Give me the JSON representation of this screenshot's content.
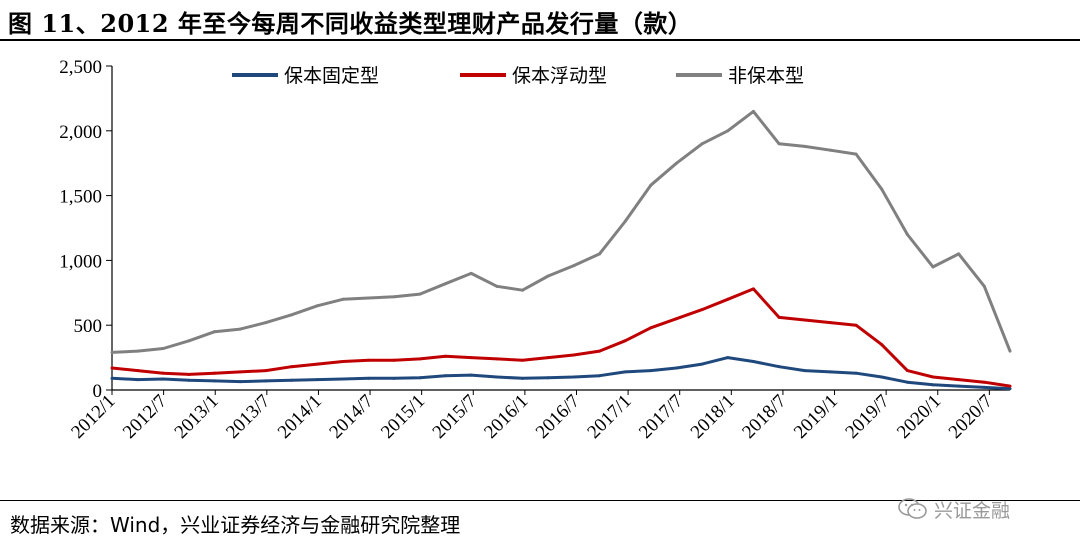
{
  "title": "图 11、2012 年至今每周不同收益类型理财产品发行量（款）",
  "source": "数据来源：Wind，兴业证券经济与金融研究院整理",
  "watermark": "兴证金融",
  "chart_data": {
    "type": "line",
    "ylim": [
      0,
      2500
    ],
    "yticks": [
      0,
      500,
      1000,
      1500,
      2000,
      2500
    ],
    "ytick_labels": [
      "0",
      "500",
      "1,000",
      "1,500",
      "2,000",
      "2,500"
    ],
    "xtick_labels": [
      "2012/1",
      "2012/7",
      "2013/1",
      "2013/7",
      "2014/1",
      "2014/7",
      "2015/1",
      "2015/7",
      "2016/1",
      "2016/7",
      "2017/1",
      "2017/7",
      "2018/1",
      "2018/7",
      "2019/1",
      "2019/7",
      "2020/1",
      "2020/7"
    ],
    "x": [
      "2012/1",
      "2012/4",
      "2012/7",
      "2012/10",
      "2013/1",
      "2013/4",
      "2013/7",
      "2013/10",
      "2014/1",
      "2014/4",
      "2014/7",
      "2014/10",
      "2015/1",
      "2015/4",
      "2015/7",
      "2015/10",
      "2016/1",
      "2016/4",
      "2016/7",
      "2016/10",
      "2017/1",
      "2017/4",
      "2017/7",
      "2017/10",
      "2018/1",
      "2018/4",
      "2018/7",
      "2018/10",
      "2019/1",
      "2019/4",
      "2019/7",
      "2019/10",
      "2020/1",
      "2020/4",
      "2020/7",
      "2020/10"
    ],
    "legend_position": "top",
    "grid": false,
    "series": [
      {
        "name": "保本固定型",
        "color": "#1f497d",
        "values": [
          90,
          80,
          85,
          75,
          70,
          65,
          70,
          75,
          80,
          85,
          90,
          90,
          95,
          110,
          115,
          100,
          90,
          95,
          100,
          110,
          140,
          150,
          170,
          200,
          250,
          220,
          180,
          150,
          140,
          130,
          100,
          60,
          40,
          30,
          20,
          10
        ]
      },
      {
        "name": "保本浮动型",
        "color": "#c00000",
        "values": [
          170,
          150,
          130,
          120,
          130,
          140,
          150,
          180,
          200,
          220,
          230,
          230,
          240,
          260,
          250,
          240,
          230,
          250,
          270,
          300,
          380,
          480,
          550,
          620,
          700,
          780,
          560,
          540,
          520,
          500,
          350,
          150,
          100,
          80,
          60,
          30
        ]
      },
      {
        "name": "非保本型",
        "color": "#808080",
        "values": [
          290,
          300,
          320,
          380,
          450,
          470,
          520,
          580,
          650,
          700,
          710,
          720,
          740,
          820,
          900,
          800,
          770,
          880,
          960,
          1050,
          1300,
          1580,
          1750,
          1900,
          2000,
          2150,
          1900,
          1880,
          1850,
          1820,
          1550,
          1200,
          950,
          1050,
          800,
          300
        ]
      }
    ]
  }
}
